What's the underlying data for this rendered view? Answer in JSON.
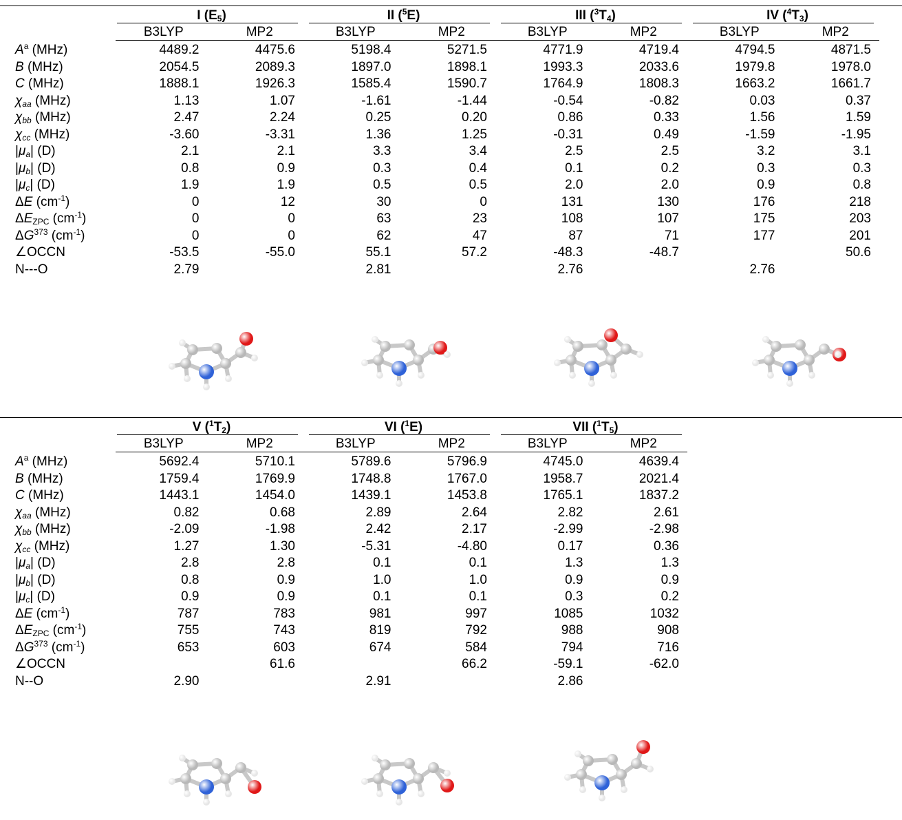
{
  "top": {
    "conformers": [
      {
        "label": "I",
        "state": "E",
        "state_sub": "5",
        "state_sup": ""
      },
      {
        "label": "II",
        "state": "E",
        "state_sub": "",
        "state_sup": "5"
      },
      {
        "label": "III",
        "state": "T",
        "state_sub": "4",
        "state_sup": "3"
      },
      {
        "label": "IV",
        "state": "T",
        "state_sub": "3",
        "state_sup": "4"
      }
    ],
    "methods": [
      "B3LYP",
      "MP2",
      "B3LYP",
      "MP2",
      "B3LYP",
      "MP2",
      "B3LYP",
      "MP2"
    ],
    "rows": [
      {
        "label": "A",
        "label_sup": "a",
        "unit": "(MHz)",
        "italic": true,
        "values": [
          "4489.2",
          "4475.6",
          "5198.4",
          "5271.5",
          "4771.9",
          "4719.4",
          "4794.5",
          "4871.5"
        ]
      },
      {
        "label": "B",
        "unit": "(MHz)",
        "italic": true,
        "values": [
          "2054.5",
          "2089.3",
          "1897.0",
          "1898.1",
          "1993.3",
          "2033.6",
          "1979.8",
          "1978.0"
        ]
      },
      {
        "label": "C",
        "unit": "(MHz)",
        "italic": true,
        "values": [
          "1888.1",
          "1926.3",
          "1585.4",
          "1590.7",
          "1764.9",
          "1808.3",
          "1663.2",
          "1661.7"
        ]
      },
      {
        "label": "χ",
        "label_sub": "aa",
        "unit": "(MHz)",
        "italic": true,
        "values": [
          "1.13",
          "1.07",
          "-1.61",
          "-1.44",
          "-0.54",
          "-0.82",
          "0.03",
          "0.37"
        ]
      },
      {
        "label": "χ",
        "label_sub": "bb",
        "unit": "(MHz)",
        "italic": true,
        "values": [
          "2.47",
          "2.24",
          "0.25",
          "0.20",
          "0.86",
          "0.33",
          "1.56",
          "1.59"
        ]
      },
      {
        "label": "χ",
        "label_sub": "cc",
        "unit": "(MHz)",
        "italic": true,
        "values": [
          "-3.60",
          "-3.31",
          "1.36",
          "1.25",
          "-0.31",
          "0.49",
          "-1.59",
          "-1.95"
        ]
      },
      {
        "label": "|μ",
        "label_sub": "a",
        "label_after": "|",
        "unit": "(D)",
        "italic": true,
        "values": [
          "2.1",
          "2.1",
          "3.3",
          "3.4",
          "2.5",
          "2.5",
          "3.2",
          "3.1"
        ]
      },
      {
        "label": "|μ",
        "label_sub": "b",
        "label_after": "|",
        "unit": "(D)",
        "italic": true,
        "values": [
          "0.8",
          "0.9",
          "0.3",
          "0.4",
          "0.1",
          "0.2",
          "0.3",
          "0.3"
        ]
      },
      {
        "label": "|μ",
        "label_sub": "c",
        "label_after": "|",
        "unit": "(D)",
        "italic": true,
        "values": [
          "1.9",
          "1.9",
          "0.5",
          "0.5",
          "2.0",
          "2.0",
          "0.9",
          "0.8"
        ]
      },
      {
        "label": "ΔE",
        "unit": "(cm",
        "unit_sup": "-1",
        "unit_end": ")",
        "values": [
          "0",
          "12",
          "30",
          "0",
          "131",
          "130",
          "176",
          "218"
        ]
      },
      {
        "label": "ΔE",
        "label_sub": "ZPC",
        "unit": "(cm",
        "unit_sup": "-1",
        "unit_end": ")",
        "values": [
          "0",
          "0",
          "63",
          "23",
          "108",
          "107",
          "175",
          "203"
        ]
      },
      {
        "label": "ΔG",
        "label_sup": "373",
        "unit": "(cm",
        "unit_sup": "-1",
        "unit_end": ")",
        "values": [
          "0",
          "0",
          "62",
          "47",
          "87",
          "71",
          "177",
          "201"
        ]
      },
      {
        "label": "∠OCCN",
        "unit": "",
        "values": [
          "-53.5",
          "-55.0",
          "55.1",
          "57.2",
          "-48.3",
          "-48.7",
          "",
          "50.6"
        ]
      },
      {
        "label": "N---O",
        "unit": "",
        "values": [
          "2.79",
          "",
          "2.81",
          "",
          "2.76",
          "",
          "2.76",
          ""
        ]
      }
    ]
  },
  "bottom": {
    "conformers": [
      {
        "label": "V",
        "state": "T",
        "state_sub": "2",
        "state_sup": "1"
      },
      {
        "label": "VI",
        "state": "E",
        "state_sub": "",
        "state_sup": "1"
      },
      {
        "label": "VII",
        "state": "T",
        "state_sub": "5",
        "state_sup": "1"
      }
    ],
    "methods": [
      "B3LYP",
      "MP2",
      "B3LYP",
      "MP2",
      "B3LYP",
      "MP2"
    ],
    "rows": [
      {
        "label": "A",
        "label_sup": "a",
        "unit": "(MHz)",
        "italic": true,
        "values": [
          "5692.4",
          "5710.1",
          "5789.6",
          "5796.9",
          "4745.0",
          "4639.4"
        ]
      },
      {
        "label": "B",
        "unit": "(MHz)",
        "italic": true,
        "values": [
          "1759.4",
          "1769.9",
          "1748.8",
          "1767.0",
          "1958.7",
          "2021.4"
        ]
      },
      {
        "label": "C",
        "unit": "(MHz)",
        "italic": true,
        "values": [
          "1443.1",
          "1454.0",
          "1439.1",
          "1453.8",
          "1765.1",
          "1837.2"
        ]
      },
      {
        "label": "χ",
        "label_sub": "aa",
        "unit": "(MHz)",
        "italic": true,
        "values": [
          "0.82",
          "0.68",
          "2.89",
          "2.64",
          "2.82",
          "2.61"
        ]
      },
      {
        "label": "χ",
        "label_sub": "bb",
        "unit": "(MHz)",
        "italic": true,
        "values": [
          "-2.09",
          "-1.98",
          "2.42",
          "2.17",
          "-2.99",
          "-2.98"
        ]
      },
      {
        "label": "χ",
        "label_sub": "cc",
        "unit": "(MHz)",
        "italic": true,
        "values": [
          "1.27",
          "1.30",
          "-5.31",
          "-4.80",
          "0.17",
          "0.36"
        ]
      },
      {
        "label": "|μ",
        "label_sub": "a",
        "label_after": "|",
        "unit": "(D)",
        "italic": true,
        "values": [
          "2.8",
          "2.8",
          "0.1",
          "0.1",
          "1.3",
          "1.3"
        ]
      },
      {
        "label": "|μ",
        "label_sub": "b",
        "label_after": "|",
        "unit": "(D)",
        "italic": true,
        "values": [
          "0.8",
          "0.9",
          "1.0",
          "1.0",
          "0.9",
          "0.9"
        ]
      },
      {
        "label": "|μ",
        "label_sub": "c",
        "label_after": "|",
        "unit": "(D)",
        "italic": true,
        "values": [
          "0.9",
          "0.9",
          "0.1",
          "0.1",
          "0.3",
          "0.2"
        ]
      },
      {
        "label": "ΔE",
        "unit": "(cm",
        "unit_sup": "-1",
        "unit_end": ")",
        "values": [
          "787",
          "783",
          "981",
          "997",
          "1085",
          "1032"
        ]
      },
      {
        "label": "ΔE",
        "label_sub": "ZPC",
        "unit": "(cm",
        "unit_sup": "-1",
        "unit_end": ")",
        "values": [
          "755",
          "743",
          "819",
          "792",
          "988",
          "908"
        ]
      },
      {
        "label": "ΔG",
        "label_sup": "373",
        "unit": "(cm",
        "unit_sup": "-1",
        "unit_end": ")",
        "values": [
          "653",
          "603",
          "674",
          "584",
          "794",
          "716"
        ]
      },
      {
        "label": "∠OCCN",
        "unit": "",
        "values": [
          "",
          "61.6",
          "",
          "66.2",
          "-59.1",
          "-62.0"
        ]
      },
      {
        "label": "N--O",
        "unit": "",
        "values": [
          "2.90",
          "",
          "2.91",
          "",
          "2.86",
          ""
        ]
      }
    ]
  },
  "colors": {
    "nitrogen": "#2f62d8",
    "oxygen": "#e01818",
    "carbon": "#b8b8b8",
    "hydrogen": "#e6e6e6"
  }
}
